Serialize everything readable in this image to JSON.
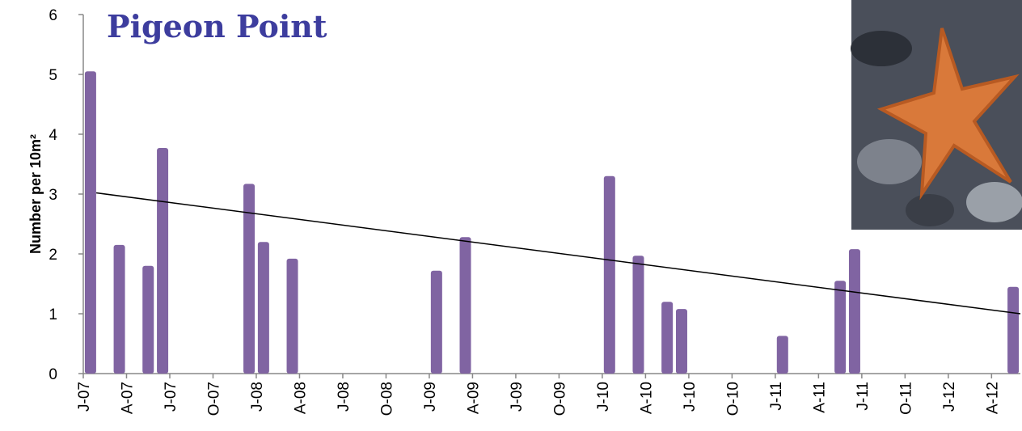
{
  "chart_data": {
    "type": "bar",
    "title": "Pigeon Point",
    "y_label": "Number  per 10m²",
    "categories": [
      "J-07",
      null,
      null,
      "A-07",
      null,
      null,
      "J-07",
      null,
      null,
      "O-07",
      null,
      null,
      "J-08",
      null,
      null,
      "A-08",
      null,
      null,
      "J-08",
      null,
      null,
      "O-08",
      null,
      null,
      "J-09",
      null,
      null,
      "A-09",
      null,
      null,
      "J-09",
      null,
      null,
      "O-09",
      null,
      null,
      "J-10",
      null,
      null,
      "A-10",
      null,
      null,
      "J-10",
      null,
      null,
      "O-10",
      null,
      null,
      "J-11",
      null,
      null,
      "A-11",
      null,
      null,
      "J-11",
      null,
      null,
      "O-11",
      null,
      null,
      "J-12",
      null,
      null,
      "A-12",
      null
    ],
    "values": [
      5.05,
      null,
      2.15,
      null,
      1.8,
      3.77,
      null,
      null,
      null,
      null,
      null,
      3.17,
      2.2,
      null,
      1.92,
      null,
      null,
      null,
      null,
      null,
      null,
      null,
      null,
      null,
      1.72,
      null,
      2.28,
      null,
      null,
      null,
      null,
      null,
      null,
      null,
      null,
      null,
      3.3,
      null,
      1.97,
      null,
      1.2,
      1.08,
      null,
      null,
      null,
      null,
      null,
      null,
      0.63,
      null,
      null,
      null,
      1.55,
      2.08,
      null,
      null,
      null,
      null,
      null,
      null,
      null,
      null,
      null,
      null,
      1.45
    ],
    "color": "#8064a2",
    "trendline": [
      3.02,
      1.0
    ],
    "trendline_color": "#000000",
    "ylim": [
      0,
      6
    ],
    "yticks": [
      0,
      1,
      2,
      3,
      4,
      5,
      6
    ]
  }
}
